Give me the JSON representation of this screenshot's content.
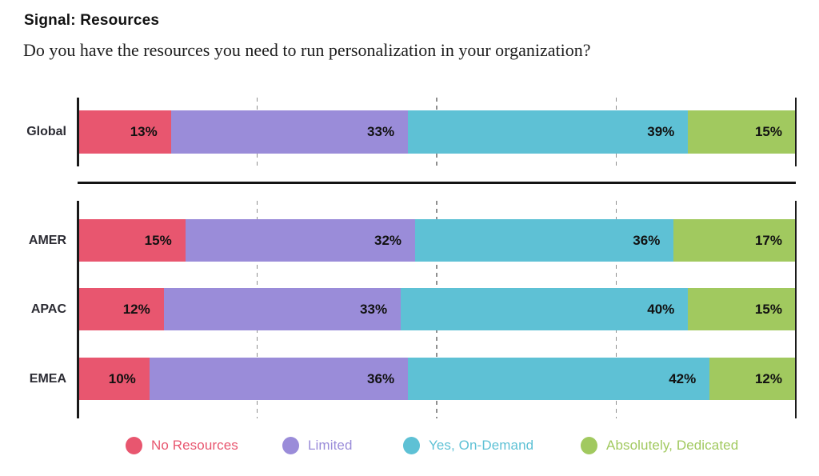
{
  "header": {
    "title": "Signal: Resources",
    "question": "Do you have the resources you need to run personalization in your organization?"
  },
  "chart_data": {
    "type": "bar",
    "orientation": "horizontal",
    "stacked": true,
    "value_unit": "%",
    "xlim": [
      0,
      100
    ],
    "gridlines_at": [
      25,
      50,
      75
    ],
    "grid_style": "dashed",
    "categories": [
      "Global",
      "AMER",
      "APAC",
      "EMEA"
    ],
    "row_groups": [
      [
        "Global"
      ],
      [
        "AMER",
        "APAC",
        "EMEA"
      ]
    ],
    "series": [
      {
        "name": "No Resources",
        "color": "#E8566F",
        "values": [
          13,
          15,
          12,
          10
        ]
      },
      {
        "name": "Limited",
        "color": "#9A8CD9",
        "values": [
          33,
          32,
          33,
          36
        ]
      },
      {
        "name": "Yes, On-Demand",
        "color": "#5EC1D5",
        "values": [
          39,
          36,
          40,
          42
        ]
      },
      {
        "name": "Absolutely, Dedicated",
        "color": "#A1C95F",
        "values": [
          15,
          17,
          15,
          12
        ]
      }
    ],
    "data_labels": "inside-right, bold, black, value + %",
    "legend_position": "bottom"
  },
  "colors": {
    "axis": "#1a1a1a",
    "gridline": "#8f8f8f",
    "separator": "#141414",
    "value_label": "#111111",
    "row_label": "#2b2b33",
    "background": "#ffffff"
  }
}
